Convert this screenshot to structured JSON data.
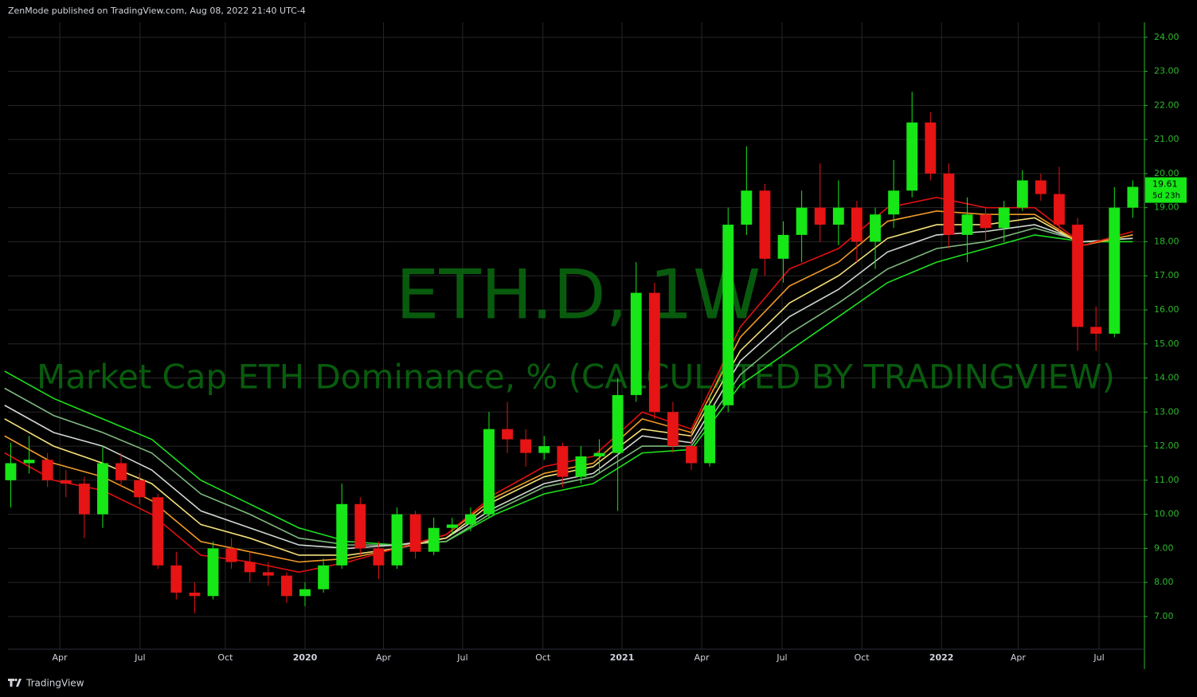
{
  "header": "ZenMode published on TradingView.com, Aug 08, 2022 21:40 UTC-4",
  "footer": "TradingView",
  "chart_data": {
    "type": "candlestick",
    "title": "ETH.D, 1W",
    "subtitle": "Market Cap ETH Dominance, % (CALCULATED BY TRADINGVIEW)",
    "countdown": "5d 23h",
    "up_color": "#17e617",
    "down_color": "#e61414",
    "grid": true,
    "xlim": [
      4.55,
      189.9
    ],
    "ylim": [
      6.04,
      24.44
    ],
    "xticks": [
      {
        "value": 13,
        "label": "Apr"
      },
      {
        "value": 26.1,
        "label": "Jul"
      },
      {
        "value": 40,
        "label": "Oct"
      },
      {
        "value": 53,
        "label": "2020"
      },
      {
        "value": 65.8,
        "label": "Apr"
      },
      {
        "value": 78.7,
        "label": "Jul"
      },
      {
        "value": 91.8,
        "label": "Oct"
      },
      {
        "value": 104.7,
        "label": "2021"
      },
      {
        "value": 117.7,
        "label": "Apr"
      },
      {
        "value": 130.8,
        "label": "Jul"
      },
      {
        "value": 143.8,
        "label": "Oct"
      },
      {
        "value": 156.8,
        "label": "2022"
      },
      {
        "value": 169.3,
        "label": "Apr"
      },
      {
        "value": 182.5,
        "label": "Jul"
      }
    ],
    "yticks": [
      {
        "value": 7,
        "label": "7.00"
      },
      {
        "value": 8,
        "label": "8.00"
      },
      {
        "value": 9,
        "label": "9.00"
      },
      {
        "value": 10,
        "label": "10.00"
      },
      {
        "value": 11,
        "label": "11.00"
      },
      {
        "value": 12,
        "label": "12.00"
      },
      {
        "value": 13,
        "label": "13.00"
      },
      {
        "value": 14,
        "label": "14.00"
      },
      {
        "value": 15,
        "label": "15.00"
      },
      {
        "value": 16,
        "label": "16.00"
      },
      {
        "value": 17,
        "label": "17.00"
      },
      {
        "value": 18,
        "label": "18.00"
      },
      {
        "value": 19,
        "label": "19.00"
      },
      {
        "value": 20,
        "label": "20.00"
      },
      {
        "value": 21,
        "label": "21.00"
      },
      {
        "value": 22,
        "label": "22.00"
      },
      {
        "value": 23,
        "label": "23.00"
      },
      {
        "value": 24,
        "label": "24.00"
      }
    ],
    "x": [
      5,
      8,
      11,
      14,
      17,
      20,
      23,
      26,
      29,
      32,
      35,
      38,
      41,
      44,
      47,
      50,
      53,
      56,
      59,
      62,
      65,
      68,
      71,
      74,
      77,
      80,
      83,
      86,
      89,
      92,
      95,
      98,
      101,
      104,
      107,
      110,
      113,
      116,
      119,
      122,
      125,
      128,
      131,
      134,
      137,
      140,
      143,
      146,
      149,
      152,
      155,
      158,
      161,
      164,
      167,
      170,
      173,
      176,
      179,
      182,
      185,
      188
    ],
    "candles": [
      [
        11.0,
        12.1,
        10.2,
        11.5
      ],
      [
        11.5,
        12.3,
        11.2,
        11.6
      ],
      [
        11.6,
        11.8,
        10.8,
        11.0
      ],
      [
        11.0,
        11.3,
        10.5,
        10.9
      ],
      [
        10.9,
        11.1,
        9.3,
        10.0
      ],
      [
        10.0,
        12.0,
        9.6,
        11.5
      ],
      [
        11.5,
        11.8,
        10.8,
        11.0
      ],
      [
        11.0,
        11.2,
        10.3,
        10.5
      ],
      [
        10.5,
        10.6,
        8.4,
        8.5
      ],
      [
        8.5,
        8.9,
        7.5,
        7.7
      ],
      [
        7.7,
        8.0,
        7.1,
        7.6
      ],
      [
        7.6,
        9.2,
        7.5,
        9.0
      ],
      [
        9.0,
        9.3,
        8.4,
        8.6
      ],
      [
        8.6,
        8.9,
        8.0,
        8.3
      ],
      [
        8.3,
        8.6,
        7.9,
        8.2
      ],
      [
        8.2,
        8.3,
        7.4,
        7.6
      ],
      [
        7.6,
        8.0,
        7.3,
        7.8
      ],
      [
        7.8,
        8.7,
        7.7,
        8.5
      ],
      [
        8.5,
        10.9,
        8.4,
        10.3
      ],
      [
        10.3,
        10.5,
        8.8,
        9.0
      ],
      [
        9.0,
        9.2,
        8.1,
        8.5
      ],
      [
        8.5,
        10.2,
        8.4,
        10.0
      ],
      [
        10.0,
        10.1,
        8.7,
        8.9
      ],
      [
        8.9,
        9.9,
        8.8,
        9.6
      ],
      [
        9.6,
        9.9,
        9.4,
        9.7
      ],
      [
        9.7,
        10.2,
        9.5,
        10.0
      ],
      [
        10.0,
        13.0,
        9.9,
        12.5
      ],
      [
        12.5,
        13.3,
        11.8,
        12.2
      ],
      [
        12.2,
        12.5,
        11.4,
        11.8
      ],
      [
        11.8,
        12.3,
        11.6,
        12.0
      ],
      [
        12.0,
        12.1,
        10.8,
        11.1
      ],
      [
        11.1,
        12.0,
        10.9,
        11.7
      ],
      [
        11.7,
        12.2,
        11.2,
        11.8
      ],
      [
        11.8,
        14.0,
        10.1,
        13.5
      ],
      [
        13.5,
        17.4,
        13.3,
        16.5
      ],
      [
        16.5,
        16.8,
        12.8,
        13.0
      ],
      [
        13.0,
        13.3,
        11.8,
        12.0
      ],
      [
        12.0,
        12.4,
        11.3,
        11.5
      ],
      [
        11.5,
        13.5,
        11.4,
        13.2
      ],
      [
        13.2,
        19.0,
        13.0,
        18.5
      ],
      [
        18.5,
        20.8,
        18.2,
        19.5
      ],
      [
        19.5,
        19.7,
        17.0,
        17.5
      ],
      [
        17.5,
        18.6,
        16.8,
        18.2
      ],
      [
        18.2,
        19.5,
        17.4,
        19.0
      ],
      [
        19.0,
        20.3,
        18.0,
        18.5
      ],
      [
        18.5,
        19.8,
        17.9,
        19.0
      ],
      [
        19.0,
        19.2,
        17.4,
        18.0
      ],
      [
        18.0,
        19.0,
        17.2,
        18.8
      ],
      [
        18.8,
        20.4,
        18.4,
        19.5
      ],
      [
        19.5,
        22.4,
        19.3,
        21.5
      ],
      [
        21.5,
        21.8,
        19.8,
        20.0
      ],
      [
        20.0,
        20.3,
        17.8,
        18.2
      ],
      [
        18.2,
        19.3,
        17.4,
        18.8
      ],
      [
        18.8,
        19.0,
        18.0,
        18.4
      ],
      [
        18.4,
        19.2,
        18.0,
        19.0
      ],
      [
        19.0,
        20.1,
        18.9,
        19.8
      ],
      [
        19.8,
        20.0,
        19.2,
        19.4
      ],
      [
        19.4,
        20.2,
        18.3,
        18.5
      ],
      [
        18.5,
        18.7,
        14.8,
        15.5
      ],
      [
        15.5,
        16.1,
        14.8,
        15.3
      ],
      [
        15.3,
        19.6,
        15.2,
        19.0
      ],
      [
        19.0,
        19.8,
        18.7,
        19.61
      ]
    ],
    "ribbon_x": [
      4,
      12,
      20,
      28,
      36,
      44,
      52,
      60,
      68,
      76,
      84,
      92,
      100,
      108,
      116,
      124,
      132,
      140,
      148,
      156,
      164,
      172,
      180,
      188
    ],
    "ribbon": [
      {
        "color": "#1ee01e",
        "values": [
          14.2,
          13.4,
          12.8,
          12.2,
          11.0,
          10.3,
          9.6,
          9.2,
          9.1,
          9.2,
          10.0,
          10.6,
          10.9,
          11.8,
          11.9,
          13.8,
          14.8,
          15.8,
          16.8,
          17.4,
          17.8,
          18.2,
          18.0,
          18.0
        ]
      },
      {
        "color": "#7fb87f",
        "values": [
          13.7,
          12.9,
          12.4,
          11.8,
          10.6,
          10.0,
          9.3,
          9.1,
          9.1,
          9.2,
          10.1,
          10.8,
          11.1,
          12.0,
          12.0,
          14.1,
          15.3,
          16.2,
          17.2,
          17.8,
          18.0,
          18.4,
          18.0,
          18.1
        ]
      },
      {
        "color": "#d0d8d0",
        "values": [
          13.2,
          12.4,
          12.0,
          11.3,
          10.1,
          9.6,
          9.1,
          9.0,
          9.1,
          9.3,
          10.2,
          10.9,
          11.2,
          12.3,
          12.1,
          14.5,
          15.8,
          16.6,
          17.7,
          18.2,
          18.3,
          18.5,
          18.0,
          18.1
        ]
      },
      {
        "color": "#f5e07a",
        "values": [
          12.8,
          12.0,
          11.5,
          10.9,
          9.7,
          9.3,
          8.8,
          8.8,
          9.0,
          9.3,
          10.4,
          11.1,
          11.4,
          12.5,
          12.3,
          14.8,
          16.2,
          17.0,
          18.1,
          18.5,
          18.5,
          18.7,
          17.9,
          18.2
        ]
      },
      {
        "color": "#f09a28",
        "values": [
          12.3,
          11.5,
          11.1,
          10.4,
          9.2,
          8.9,
          8.6,
          8.7,
          9.0,
          9.4,
          10.5,
          11.2,
          11.5,
          12.8,
          12.4,
          15.2,
          16.7,
          17.4,
          18.6,
          18.9,
          18.8,
          18.8,
          17.9,
          18.2
        ]
      },
      {
        "color": "#e01010",
        "values": [
          11.8,
          11.0,
          10.7,
          10.0,
          8.8,
          8.6,
          8.3,
          8.6,
          9.0,
          9.4,
          10.6,
          11.4,
          11.7,
          13.0,
          12.5,
          15.5,
          17.2,
          17.8,
          19.0,
          19.3,
          19.0,
          19.0,
          17.9,
          18.3
        ]
      }
    ]
  }
}
